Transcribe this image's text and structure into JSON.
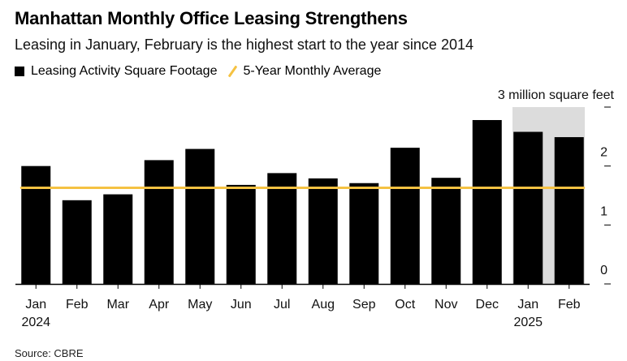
{
  "title": "Manhattan Monthly Office Leasing Strengthens",
  "subtitle": "Leasing in January, February is the highest start to the year since 2014",
  "legend": {
    "bars_label": "Leasing Activity Square Footage",
    "line_label": "5-Year Monthly Average"
  },
  "source": "Source: CBRE",
  "colors": {
    "bar": "#000000",
    "average_line": "#f5c242",
    "highlight": "#dcdcdc"
  },
  "chart_data": {
    "type": "bar",
    "categories": [
      "Jan",
      "Feb",
      "Mar",
      "Apr",
      "May",
      "Jun",
      "Jul",
      "Aug",
      "Sep",
      "Oct",
      "Nov",
      "Dec",
      "Jan",
      "Feb"
    ],
    "year_labels": [
      {
        "index": 0,
        "label": "2024"
      },
      {
        "index": 12,
        "label": "2025"
      }
    ],
    "series": [
      {
        "name": "Leasing Activity Square Footage",
        "values": [
          2.0,
          1.42,
          1.52,
          2.1,
          2.29,
          1.68,
          1.88,
          1.79,
          1.71,
          2.31,
          1.8,
          2.78,
          2.58,
          2.49
        ]
      }
    ],
    "average_line": {
      "name": "5-Year Monthly Average",
      "value": 1.63
    },
    "highlight_categories": [
      12,
      13
    ],
    "yticks": [
      {
        "value": 0,
        "label": "0"
      },
      {
        "value": 1,
        "label": "1"
      },
      {
        "value": 2,
        "label": "2"
      },
      {
        "value": 3,
        "label": "3 million square feet"
      }
    ],
    "ylim": [
      0,
      3
    ],
    "xlabel": "",
    "ylabel": "",
    "grid": false,
    "legend_position": "top-left"
  }
}
